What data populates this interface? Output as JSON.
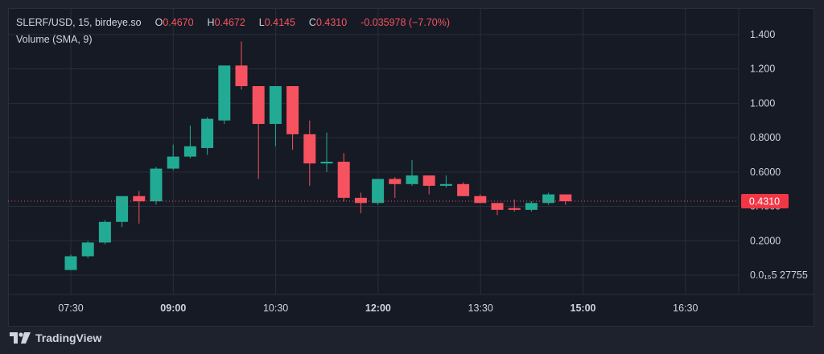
{
  "header": {
    "symbol": "SLERF/USD, 15, birdeye.so",
    "o_label": "O",
    "o_value": "0.4670",
    "h_label": "H",
    "h_value": "0.4672",
    "l_label": "L",
    "l_value": "0.4145",
    "c_label": "C",
    "c_value": "0.4310",
    "change": "-0.035978 (−7.70%)",
    "volume": "Volume (SMA, 9)"
  },
  "brand": {
    "name": "TradingView",
    "icon": "tradingview-logo-icon"
  },
  "colors": {
    "up": "#22ab94",
    "down": "#f7525f",
    "grid": "#2a2e39",
    "text": "#d1d4dc",
    "price_label_bg": "#f23645"
  },
  "chart_data": {
    "type": "candlestick",
    "y_ticks": [
      "1.400",
      "1.200",
      "1.000",
      "0.8000",
      "0.6000",
      "0.4000",
      "0.2000",
      "0.0₁₅5 27755"
    ],
    "y_tick_values": [
      1.4,
      1.2,
      1.0,
      0.8,
      0.6,
      0.4,
      0.2,
      0.0
    ],
    "x_ticks": [
      "07:30",
      "09:00",
      "10:30",
      "12:00",
      "13:30",
      "15:00",
      "16:30"
    ],
    "x_ticks_bold": [
      false,
      true,
      false,
      true,
      false,
      true,
      false
    ],
    "last_price": 0.431,
    "last_price_label": "0.4310",
    "ylim": [
      0.0,
      1.4
    ],
    "candles": [
      {
        "o": 0.03,
        "h": 0.12,
        "l": 0.03,
        "c": 0.11
      },
      {
        "o": 0.11,
        "h": 0.2,
        "l": 0.1,
        "c": 0.19
      },
      {
        "o": 0.19,
        "h": 0.32,
        "l": 0.18,
        "c": 0.31
      },
      {
        "o": 0.31,
        "h": 0.46,
        "l": 0.28,
        "c": 0.46
      },
      {
        "o": 0.46,
        "h": 0.49,
        "l": 0.3,
        "c": 0.43
      },
      {
        "o": 0.43,
        "h": 0.63,
        "l": 0.41,
        "c": 0.62
      },
      {
        "o": 0.62,
        "h": 0.76,
        "l": 0.61,
        "c": 0.69
      },
      {
        "o": 0.69,
        "h": 0.87,
        "l": 0.68,
        "c": 0.75
      },
      {
        "o": 0.74,
        "h": 0.92,
        "l": 0.7,
        "c": 0.91
      },
      {
        "o": 0.9,
        "h": 1.22,
        "l": 0.88,
        "c": 1.22
      },
      {
        "o": 1.22,
        "h": 1.36,
        "l": 1.08,
        "c": 1.1
      },
      {
        "o": 1.1,
        "h": 1.1,
        "l": 0.56,
        "c": 0.88
      },
      {
        "o": 0.88,
        "h": 1.1,
        "l": 0.75,
        "c": 1.1
      },
      {
        "o": 1.1,
        "h": 1.1,
        "l": 0.73,
        "c": 0.82
      },
      {
        "o": 0.82,
        "h": 0.9,
        "l": 0.52,
        "c": 0.65
      },
      {
        "o": 0.65,
        "h": 0.83,
        "l": 0.6,
        "c": 0.66
      },
      {
        "o": 0.66,
        "h": 0.71,
        "l": 0.43,
        "c": 0.45
      },
      {
        "o": 0.45,
        "h": 0.48,
        "l": 0.36,
        "c": 0.42
      },
      {
        "o": 0.42,
        "h": 0.56,
        "l": 0.41,
        "c": 0.56
      },
      {
        "o": 0.56,
        "h": 0.57,
        "l": 0.45,
        "c": 0.53
      },
      {
        "o": 0.53,
        "h": 0.67,
        "l": 0.52,
        "c": 0.58
      },
      {
        "o": 0.58,
        "h": 0.58,
        "l": 0.47,
        "c": 0.52
      },
      {
        "o": 0.52,
        "h": 0.58,
        "l": 0.51,
        "c": 0.53
      },
      {
        "o": 0.53,
        "h": 0.54,
        "l": 0.46,
        "c": 0.46
      },
      {
        "o": 0.46,
        "h": 0.47,
        "l": 0.42,
        "c": 0.42
      },
      {
        "o": 0.42,
        "h": 0.42,
        "l": 0.35,
        "c": 0.38
      },
      {
        "o": 0.39,
        "h": 0.44,
        "l": 0.37,
        "c": 0.38
      },
      {
        "o": 0.38,
        "h": 0.43,
        "l": 0.37,
        "c": 0.42
      },
      {
        "o": 0.42,
        "h": 0.48,
        "l": 0.41,
        "c": 0.47
      },
      {
        "o": 0.47,
        "h": 0.47,
        "l": 0.41,
        "c": 0.43
      }
    ]
  }
}
